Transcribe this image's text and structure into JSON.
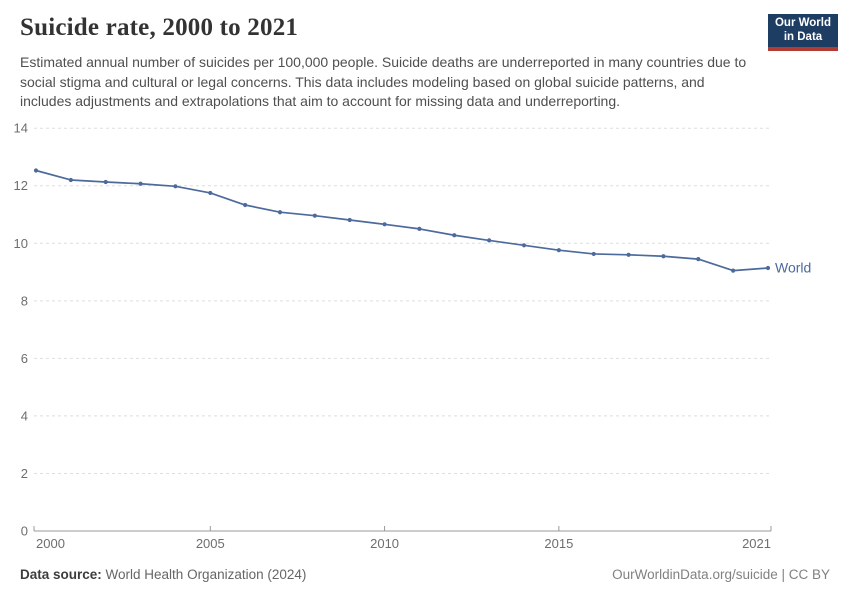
{
  "header": {
    "title": "Suicide rate, 2000 to 2021",
    "subtitle": "Estimated annual number of suicides per 100,000 people. Suicide deaths are underreported in many countries due to social stigma and cultural or legal concerns. This data includes modeling based on global suicide patterns, and includes adjustments and extrapolations that aim to account for missing data and underreporting.",
    "logo": {
      "line1": "Our World",
      "line2": "in Data",
      "background_color": "#1d3d63",
      "accent_color": "#b13c35"
    }
  },
  "chart_data": {
    "type": "line",
    "title": "Suicide rate, 2000 to 2021",
    "xlabel": "",
    "ylabel": "",
    "x": [
      2000,
      2001,
      2002,
      2003,
      2004,
      2005,
      2006,
      2007,
      2008,
      2009,
      2010,
      2011,
      2012,
      2013,
      2014,
      2015,
      2016,
      2017,
      2018,
      2019,
      2020,
      2021
    ],
    "series": [
      {
        "name": "World",
        "color": "#4c6a9c",
        "values": [
          12.53,
          12.2,
          12.13,
          12.07,
          11.98,
          11.75,
          11.33,
          11.08,
          10.96,
          10.81,
          10.66,
          10.5,
          10.28,
          10.1,
          9.93,
          9.76,
          9.63,
          9.6,
          9.55,
          9.45,
          9.05,
          9.14
        ]
      }
    ],
    "xlim": [
      2000,
      2021
    ],
    "ylim": [
      0,
      14
    ],
    "yticks": [
      0,
      2,
      4,
      6,
      8,
      10,
      12,
      14
    ],
    "xticks": [
      2000,
      2005,
      2010,
      2015,
      2021
    ],
    "grid": "horizontal-dashed",
    "legend": "line-end-label"
  },
  "footer": {
    "source_label": "Data source:",
    "source_value": " World Health Organization (2024)",
    "attribution": "OurWorldinData.org/suicide | CC BY"
  }
}
